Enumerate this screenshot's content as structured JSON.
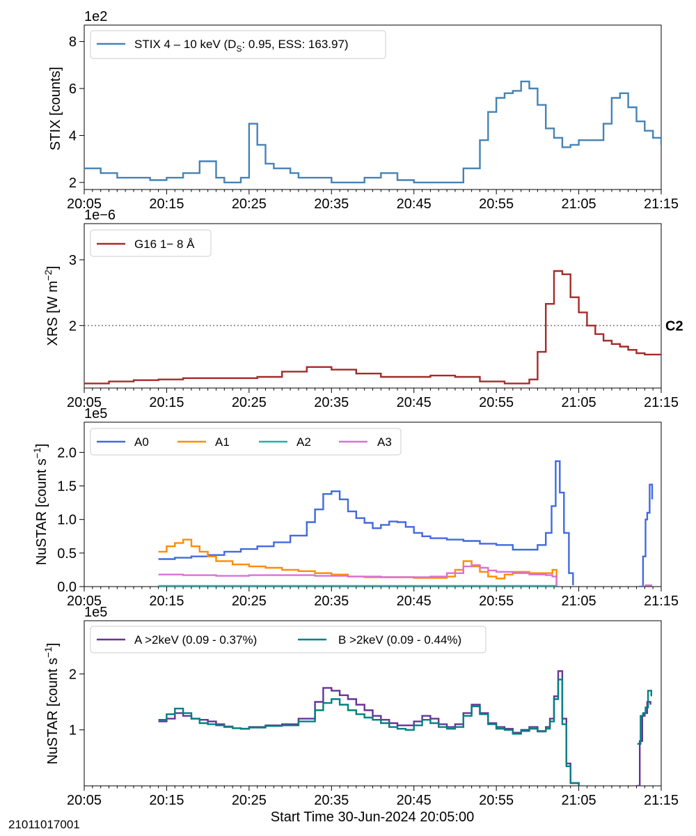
{
  "footer": {
    "observation_id": "21011017001",
    "xlabel": "Start Time 30-Jun-2024 20:05:00"
  },
  "chart_data": [
    {
      "type": "line",
      "id": "stix",
      "ylabel": "STIX [counts]",
      "multiplier": "1e2",
      "ylim": [
        1.7,
        8.7
      ],
      "yticks": [
        2,
        4,
        6,
        8
      ],
      "xlim": [
        0,
        70
      ],
      "xticks": [
        0,
        10,
        20,
        30,
        40,
        50,
        60,
        70
      ],
      "xticklabels": [
        "20:05",
        "20:15",
        "20:25",
        "20:35",
        "20:45",
        "20:55",
        "21:05",
        "21:15"
      ],
      "legend": {
        "loc": "upper-left",
        "columns": 1
      },
      "series": [
        {
          "name": "STIX 4 – 10 keV (D",
          "name_sub": "S",
          "name_tail": ": 0.95, ESS: 163.97)",
          "color": "#4682b4",
          "x": [
            0,
            2,
            4,
            6,
            8,
            10,
            12,
            14,
            16,
            17,
            18,
            19,
            20,
            21,
            22,
            23,
            24,
            25,
            26,
            28,
            30,
            32,
            34,
            36,
            38,
            40,
            42,
            44,
            46,
            48,
            49,
            50,
            51,
            52,
            53,
            54,
            55,
            56,
            57,
            58,
            59,
            60,
            61,
            62,
            63,
            64,
            65,
            66,
            67,
            68,
            69,
            70
          ],
          "y": [
            2.6,
            2.4,
            2.2,
            2.2,
            2.1,
            2.2,
            2.4,
            2.9,
            2.2,
            2.0,
            2.0,
            2.2,
            4.5,
            3.6,
            2.8,
            2.6,
            2.6,
            2.4,
            2.2,
            2.2,
            2.0,
            2.0,
            2.2,
            2.4,
            2.1,
            2.0,
            2.0,
            2.0,
            2.6,
            3.8,
            5.0,
            5.6,
            5.8,
            5.9,
            6.3,
            6.0,
            5.3,
            4.3,
            3.9,
            3.5,
            3.6,
            3.8,
            3.8,
            3.8,
            4.5,
            5.6,
            5.8,
            5.2,
            4.6,
            4.2,
            3.9,
            3.6
          ]
        }
      ]
    },
    {
      "type": "line",
      "id": "xrs",
      "ylabel": "XRS [W m",
      "ylabel_sup": "−2",
      "ylabel_tail": "]",
      "multiplier": "1e−6",
      "ylim": [
        1.05,
        3.55
      ],
      "yticks": [
        2,
        3
      ],
      "xlim": [
        0,
        70
      ],
      "xticks": [
        0,
        10,
        20,
        30,
        40,
        50,
        60,
        70
      ],
      "xticklabels": [
        "20:05",
        "20:15",
        "20:25",
        "20:35",
        "20:45",
        "20:55",
        "21:05",
        "21:15"
      ],
      "legend": {
        "loc": "upper-left",
        "columns": 1
      },
      "reference_line": {
        "y": 2.0,
        "label": "C2",
        "color": "#808080"
      },
      "series": [
        {
          "name": "G16 1− 8 Å",
          "color": "#a52a2a",
          "x": [
            0,
            3,
            6,
            9,
            12,
            15,
            18,
            21,
            24,
            27,
            30,
            33,
            36,
            39,
            42,
            45,
            48,
            51,
            54,
            55,
            56,
            57,
            58,
            59,
            60,
            61,
            62,
            63,
            64,
            65,
            66,
            67,
            68,
            69,
            70
          ],
          "y": [
            1.12,
            1.15,
            1.17,
            1.18,
            1.2,
            1.2,
            1.2,
            1.22,
            1.3,
            1.37,
            1.33,
            1.27,
            1.22,
            1.22,
            1.24,
            1.22,
            1.15,
            1.12,
            1.18,
            1.6,
            2.33,
            2.83,
            2.78,
            2.43,
            2.2,
            2.0,
            1.87,
            1.77,
            1.72,
            1.68,
            1.63,
            1.58,
            1.56,
            1.56,
            1.56
          ]
        }
      ],
      "series_step": true
    },
    {
      "type": "line",
      "id": "nustar-a",
      "ylabel": "NuSTAR [count s",
      "ylabel_sup": "−1",
      "ylabel_tail": "]",
      "multiplier": "1e5",
      "ylim": [
        0,
        2.45
      ],
      "yticks": [
        0.0,
        0.5,
        1.0,
        1.5,
        2.0
      ],
      "yticklabels": [
        "0.0",
        "0.5",
        "1.0",
        "1.5",
        "2.0"
      ],
      "xlim": [
        0,
        70
      ],
      "xticks": [
        0,
        10,
        20,
        30,
        40,
        50,
        60,
        70
      ],
      "xticklabels": [
        "20:05",
        "20:15",
        "20:25",
        "20:35",
        "20:45",
        "20:55",
        "21:05",
        "21:15"
      ],
      "legend": {
        "loc": "upper-left",
        "columns": 4
      },
      "series": [
        {
          "name": "A0",
          "color": "#4169e1",
          "segments": [
            {
              "x": [
                9,
                11,
                13,
                15,
                17,
                19,
                21,
                23,
                25,
                27,
                28,
                29,
                30,
                31,
                32,
                33,
                34,
                35,
                36,
                37,
                38,
                39,
                40,
                41,
                42,
                44,
                46,
                48,
                50,
                52,
                54,
                55,
                56,
                56.7,
                57.2,
                57.7,
                58.2,
                58.8,
                59.3
              ],
              "y": [
                0.41,
                0.43,
                0.45,
                0.47,
                0.52,
                0.56,
                0.6,
                0.66,
                0.76,
                0.96,
                1.15,
                1.38,
                1.42,
                1.3,
                1.12,
                1.02,
                0.95,
                0.87,
                0.92,
                0.97,
                0.96,
                0.89,
                0.8,
                0.75,
                0.72,
                0.7,
                0.68,
                0.64,
                0.62,
                0.55,
                0.55,
                0.62,
                0.8,
                1.2,
                1.87,
                1.4,
                0.8,
                0.2,
                0.02
              ]
            },
            {
              "x": [
                67.3,
                67.8,
                68.1,
                68.3,
                68.6,
                68.9
              ],
              "y": [
                0.0,
                0.45,
                1.0,
                1.1,
                1.52,
                1.3
              ]
            }
          ]
        },
        {
          "name": "A1",
          "color": "#ff8c00",
          "segments": [
            {
              "x": [
                9,
                10,
                11,
                12,
                13,
                14,
                15,
                16,
                18,
                20,
                22,
                24,
                26,
                28,
                30,
                32,
                34,
                36,
                38,
                40,
                42,
                44,
                45,
                46,
                47,
                48,
                49,
                50,
                51,
                52,
                54,
                56,
                56.8,
                57.3
              ],
              "y": [
                0.52,
                0.6,
                0.65,
                0.7,
                0.6,
                0.52,
                0.45,
                0.38,
                0.33,
                0.3,
                0.28,
                0.25,
                0.23,
                0.2,
                0.18,
                0.15,
                0.14,
                0.14,
                0.14,
                0.13,
                0.13,
                0.15,
                0.25,
                0.38,
                0.3,
                0.22,
                0.15,
                0.12,
                0.18,
                0.22,
                0.2,
                0.2,
                0.25,
                0.02
              ]
            }
          ]
        },
        {
          "name": "A2",
          "color": "#20b2aa",
          "segments": [
            {
              "x": [
                9,
                20,
                30,
                40,
                50,
                57.3
              ],
              "y": [
                0.01,
                0.01,
                0.01,
                0.01,
                0.01,
                0.005
              ]
            }
          ]
        },
        {
          "name": "A3",
          "color": "#da70d6",
          "segments": [
            {
              "x": [
                9,
                12,
                16,
                20,
                24,
                28,
                32,
                36,
                40,
                42,
                44,
                46,
                47,
                48,
                49,
                50,
                52,
                54,
                56,
                56.8,
                57.3
              ],
              "y": [
                0.18,
                0.17,
                0.16,
                0.17,
                0.17,
                0.16,
                0.15,
                0.14,
                0.14,
                0.15,
                0.2,
                0.3,
                0.32,
                0.28,
                0.24,
                0.22,
                0.2,
                0.18,
                0.17,
                0.15,
                0.02
              ]
            },
            {
              "x": [
                68.0,
                68.9
              ],
              "y": [
                0.02,
                0.02
              ]
            }
          ]
        }
      ]
    },
    {
      "type": "line",
      "id": "nustar-ab",
      "ylabel": "NuSTAR [count s",
      "ylabel_sup": "−1",
      "ylabel_tail": "]",
      "multiplier": "1e5",
      "ylim": [
        0,
        2.95
      ],
      "yticks": [
        1,
        2
      ],
      "xlim": [
        0,
        70
      ],
      "xticks": [
        0,
        10,
        20,
        30,
        40,
        50,
        60,
        70
      ],
      "xticklabels": [
        "20:05",
        "20:15",
        "20:25",
        "20:35",
        "20:45",
        "20:55",
        "21:05",
        "21:15"
      ],
      "legend": {
        "loc": "upper-left",
        "columns": 2
      },
      "series": [
        {
          "name": "A >2keV (0.09 - 0.37%)",
          "color": "#663399",
          "segments": [
            {
              "x": [
                9,
                10,
                11,
                12,
                13,
                14,
                15,
                16,
                17,
                18,
                19,
                20,
                22,
                24,
                26,
                28,
                29,
                30,
                31,
                32,
                33,
                34,
                35,
                36,
                37,
                38,
                39,
                40,
                41,
                42,
                43,
                44,
                45,
                46,
                47,
                48,
                49,
                50,
                51,
                52,
                53,
                54,
                55,
                56,
                56.5,
                57.0,
                57.5,
                58.0,
                58.5,
                59.0,
                60.0
              ],
              "y": [
                1.15,
                1.2,
                1.3,
                1.25,
                1.2,
                1.18,
                1.15,
                1.1,
                1.06,
                1.03,
                1.02,
                1.05,
                1.08,
                1.1,
                1.2,
                1.5,
                1.75,
                1.7,
                1.62,
                1.55,
                1.45,
                1.35,
                1.25,
                1.18,
                1.12,
                1.08,
                1.08,
                1.15,
                1.25,
                1.2,
                1.1,
                1.05,
                1.1,
                1.3,
                1.45,
                1.3,
                1.12,
                1.05,
                1.02,
                0.95,
                1.0,
                1.05,
                0.98,
                1.05,
                1.2,
                1.6,
                2.05,
                1.2,
                0.4,
                0.05,
                0.0
              ]
            },
            {
              "x": [
                67.0,
                67.4,
                67.7,
                68.0,
                68.3,
                68.7
              ],
              "y": [
                0.0,
                0.8,
                1.25,
                1.3,
                1.5,
                1.45
              ]
            }
          ]
        },
        {
          "name": "B >2keV (0.09 - 0.44%)",
          "color": "#008080",
          "segments": [
            {
              "x": [
                9,
                10,
                11,
                12,
                13,
                14,
                15,
                16,
                17,
                18,
                19,
                20,
                22,
                24,
                26,
                28,
                29,
                30,
                31,
                32,
                33,
                34,
                35,
                36,
                37,
                38,
                39,
                40,
                41,
                42,
                43,
                44,
                45,
                46,
                47,
                48,
                49,
                50,
                51,
                52,
                53,
                54,
                55,
                56,
                56.5,
                57.0,
                57.5,
                58.0,
                58.5,
                59.0,
                60.0
              ],
              "y": [
                1.18,
                1.28,
                1.38,
                1.3,
                1.2,
                1.12,
                1.1,
                1.08,
                1.05,
                1.03,
                1.02,
                1.04,
                1.07,
                1.08,
                1.15,
                1.35,
                1.48,
                1.55,
                1.45,
                1.35,
                1.28,
                1.22,
                1.18,
                1.12,
                1.05,
                1.02,
                1.0,
                1.08,
                1.18,
                1.12,
                1.05,
                1.02,
                1.05,
                1.25,
                1.42,
                1.28,
                1.1,
                1.02,
                1.0,
                0.93,
                0.98,
                1.02,
                0.97,
                1.02,
                1.15,
                1.55,
                1.9,
                1.1,
                0.35,
                0.05,
                0.0
              ]
            },
            {
              "x": [
                67.1,
                67.5,
                67.8,
                68.1,
                68.4,
                68.8
              ],
              "y": [
                0.75,
                1.25,
                1.3,
                1.4,
                1.7,
                1.6
              ]
            }
          ]
        }
      ]
    }
  ]
}
